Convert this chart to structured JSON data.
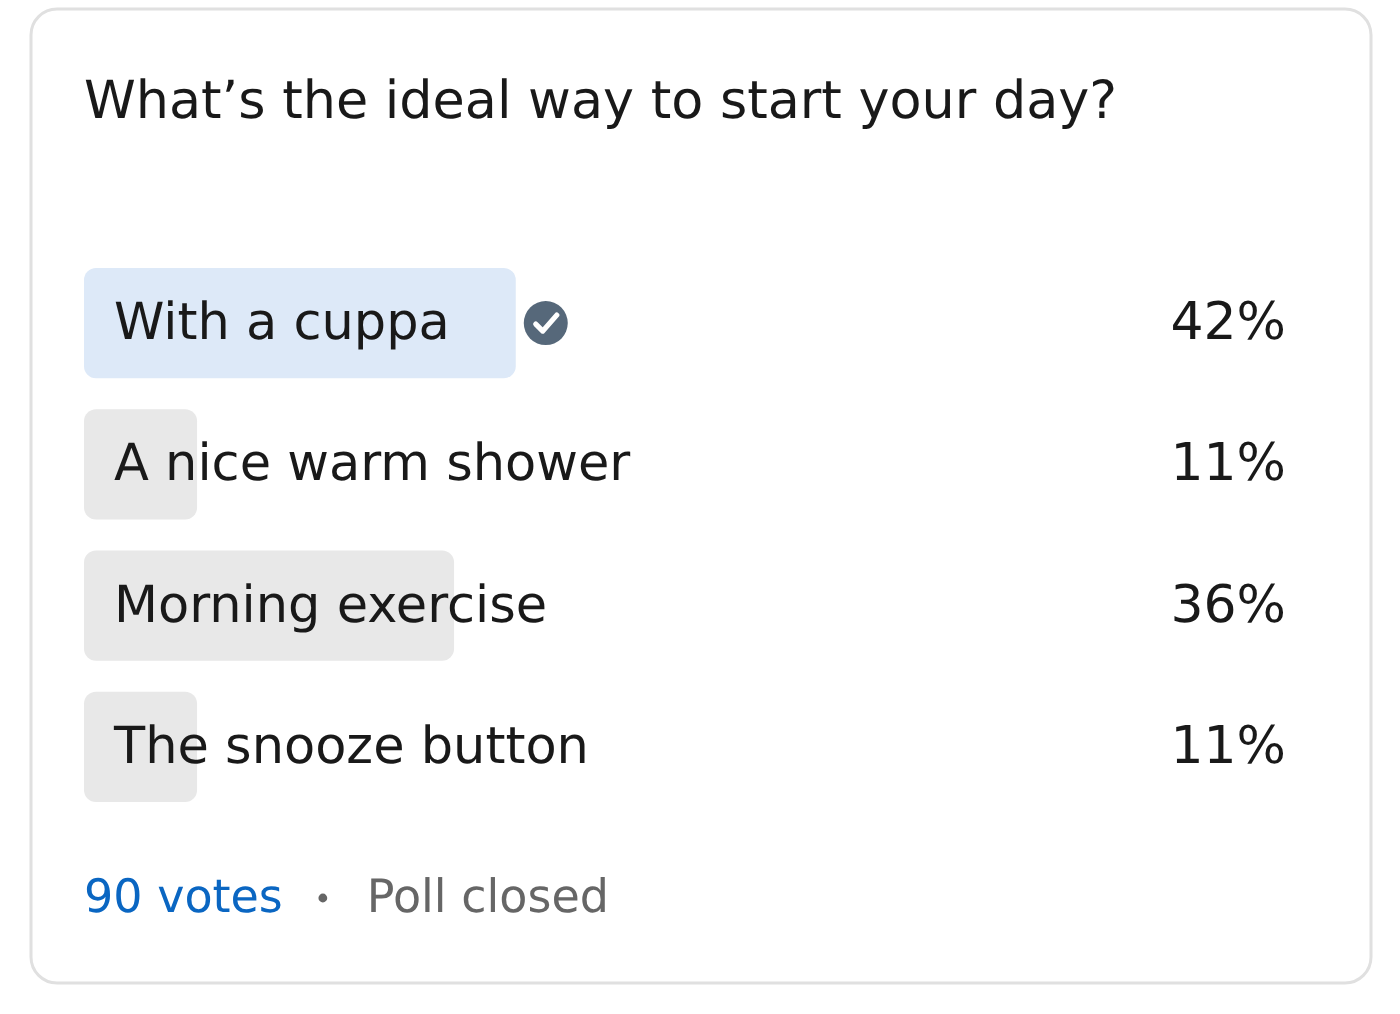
{
  "chart_data": {
    "type": "bar",
    "orientation": "horizontal",
    "title": "What’s the ideal way to start your day?",
    "categories": [
      "With a cuppa",
      "A nice warm shower",
      "Morning exercise",
      "The snooze button"
    ],
    "values": [
      42,
      11,
      36,
      11
    ],
    "colors": [
      "#dde9f8",
      "#e8e8e8",
      "#e8e8e8",
      "#e8e8e8"
    ],
    "tick_labels": "y",
    "value_labels": [
      "42%",
      "11%",
      "36%",
      "11%"
    ],
    "annotations": [
      "90 votes",
      "Poll closed"
    ]
  }
}
